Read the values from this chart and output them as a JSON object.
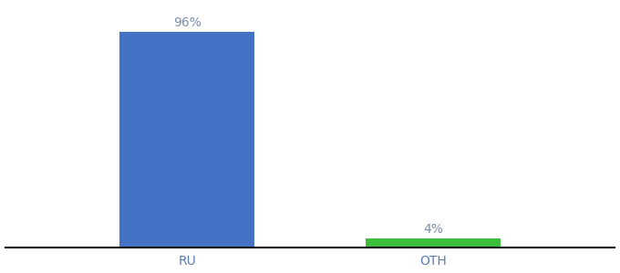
{
  "categories": [
    "RU",
    "OTH"
  ],
  "values": [
    96,
    4
  ],
  "bar_colors": [
    "#4472c4",
    "#3dbf3d"
  ],
  "label_texts": [
    "96%",
    "4%"
  ],
  "background_color": "#ffffff",
  "ylim": [
    0,
    108
  ],
  "label_fontsize": 10,
  "tick_fontsize": 10,
  "tick_color": "#5a7ab5",
  "label_color": "#7a8fa8",
  "spine_color": "#111111",
  "bar_width": 0.55
}
